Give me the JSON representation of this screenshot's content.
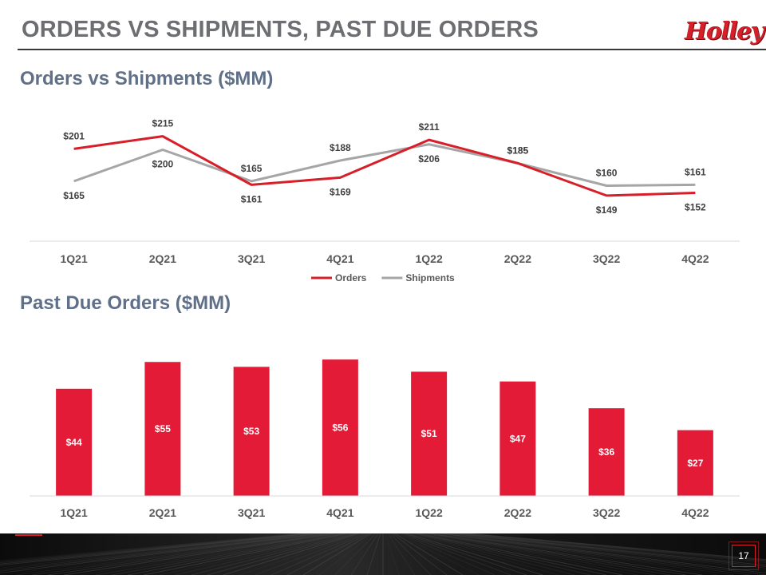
{
  "slide": {
    "title": "ORDERS VS SHIPMENTS, PAST DUE ORDERS",
    "logo_text": "Holley",
    "page_number": "17",
    "brand_color": "#d71f2a"
  },
  "chart_data": [
    {
      "type": "line",
      "title": "Orders vs Shipments ($MM)",
      "categories": [
        "1Q21",
        "2Q21",
        "3Q21",
        "4Q21",
        "1Q22",
        "2Q22",
        "3Q22",
        "4Q22"
      ],
      "series": [
        {
          "name": "Orders",
          "color": "#d71f2a",
          "values": [
            201,
            215,
            161,
            169,
            211,
            185,
            149,
            152
          ],
          "labels": [
            "$201",
            "$215",
            "$161",
            "$169",
            "$211",
            "$185",
            "$149",
            "$152"
          ]
        },
        {
          "name": "Shipments",
          "color": "#a6a6a6",
          "values": [
            165,
            200,
            165,
            188,
            206,
            185,
            160,
            161
          ],
          "labels": [
            "$165",
            "$200",
            "$165",
            "$188",
            "$206",
            "$185",
            "$160",
            "$161"
          ]
        }
      ],
      "legend": "bottom-center",
      "grid": false
    },
    {
      "type": "bar",
      "title": "Past Due Orders ($MM)",
      "categories": [
        "1Q21",
        "2Q21",
        "3Q21",
        "4Q21",
        "1Q22",
        "2Q22",
        "3Q22",
        "4Q22"
      ],
      "values": [
        44,
        55,
        53,
        56,
        51,
        47,
        36,
        27
      ],
      "labels": [
        "$44",
        "$55",
        "$53",
        "$56",
        "$51",
        "$47",
        "$36",
        "$27"
      ],
      "color": "#e31b36",
      "grid": false
    }
  ]
}
